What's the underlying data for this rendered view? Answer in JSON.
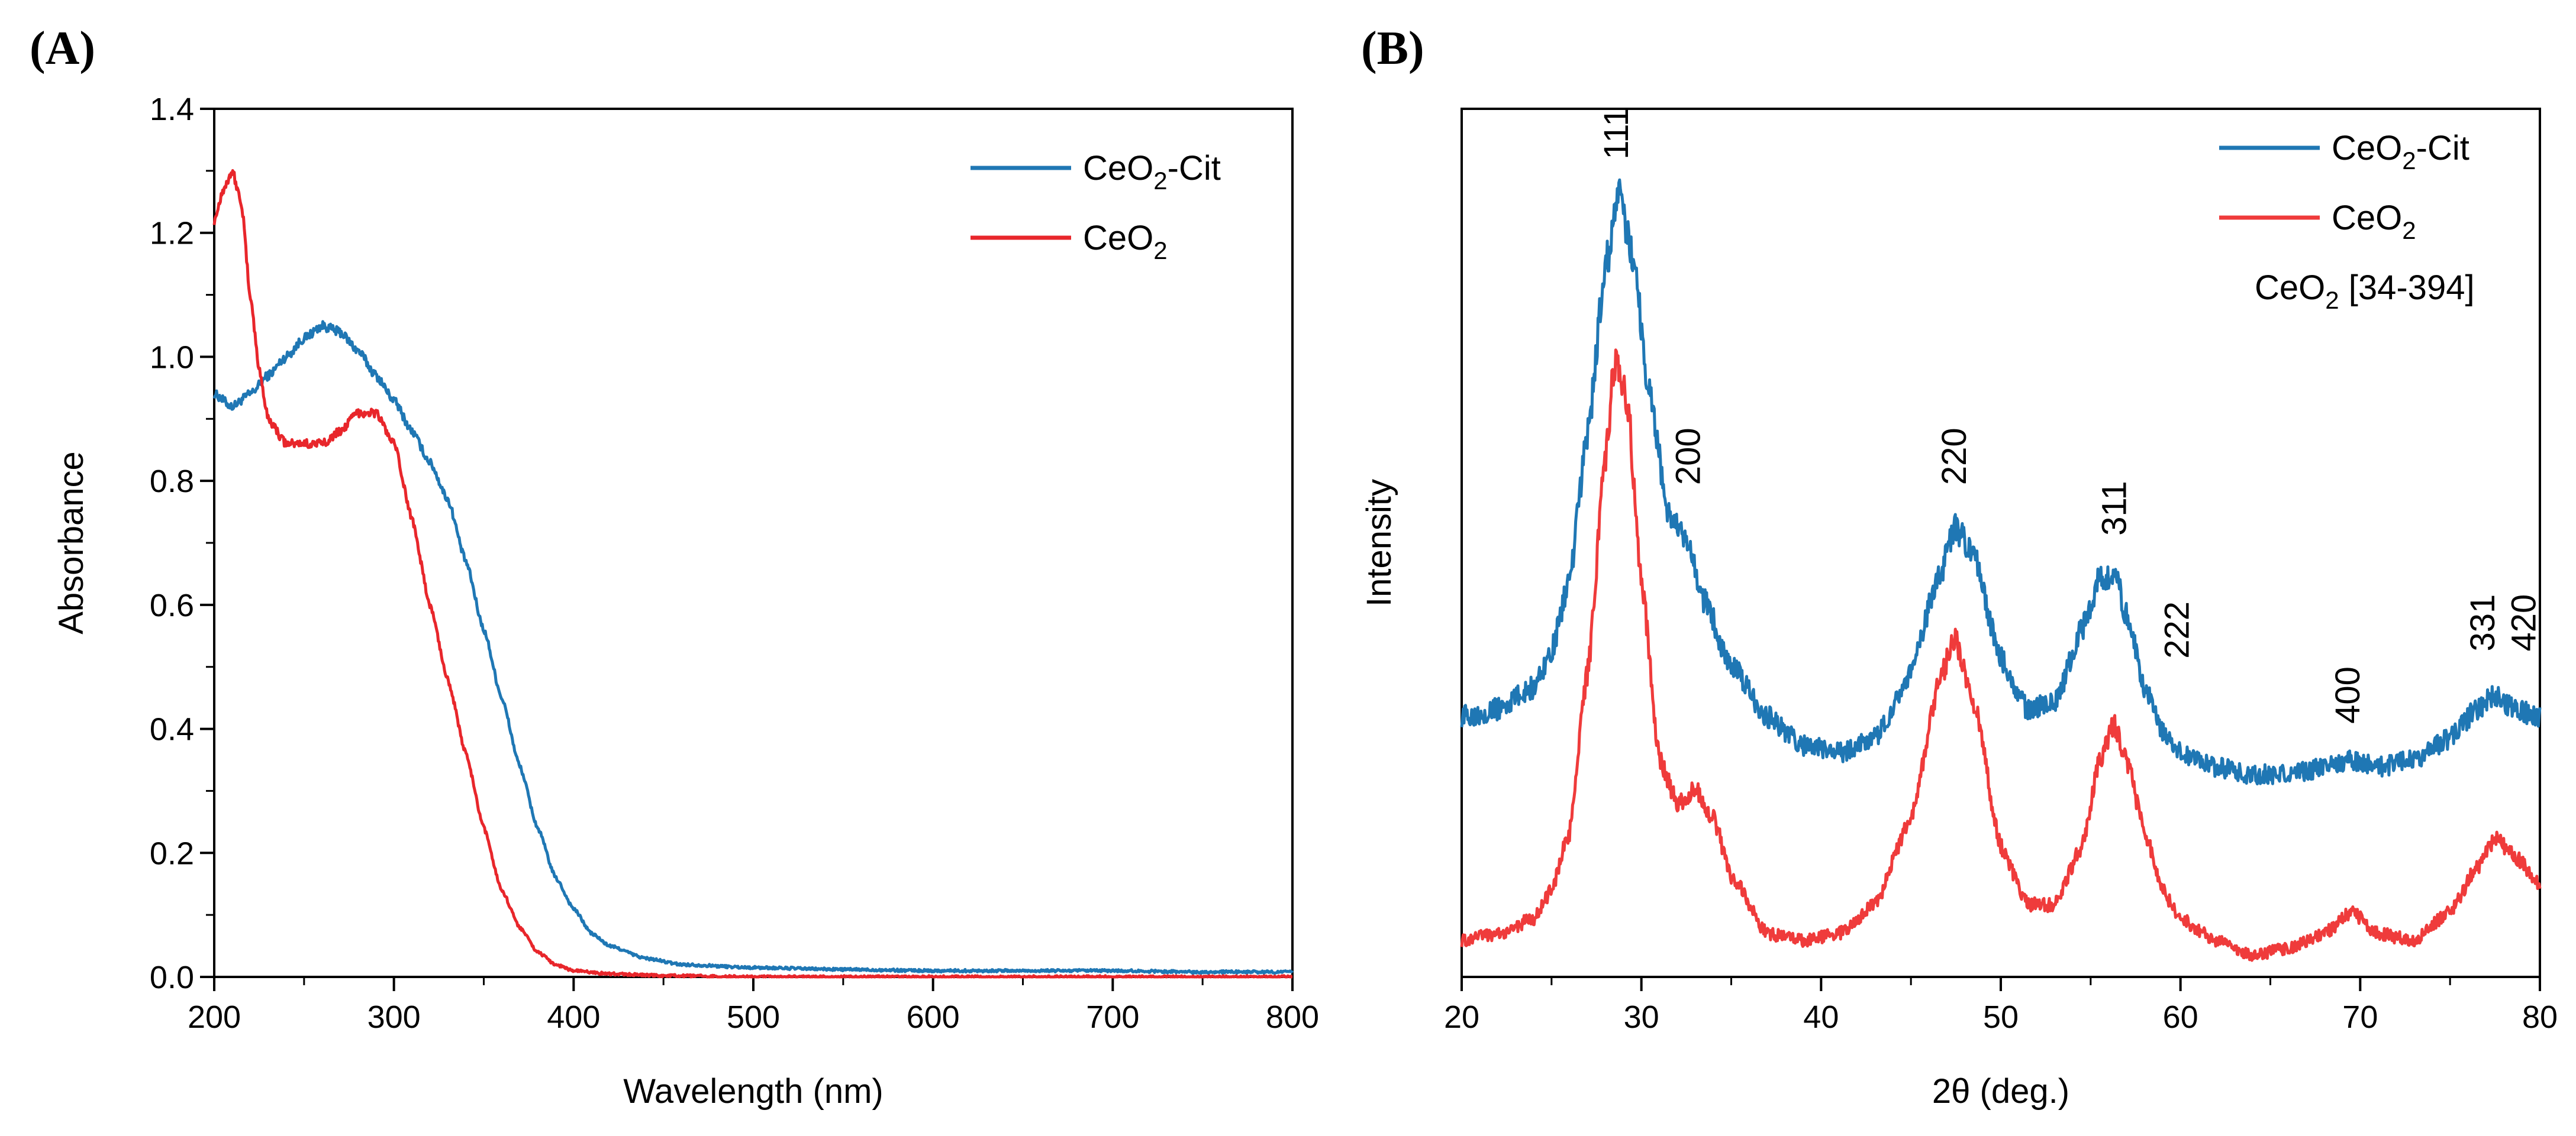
{
  "panels": {
    "a": {
      "label": "(A)"
    },
    "b": {
      "label": "(B)"
    }
  },
  "chart_data": [
    {
      "type": "line",
      "panel": "(A)",
      "title": "",
      "xlabel": "Wavelength (nm)",
      "ylabel": "Absorbance",
      "xlim": [
        200,
        800
      ],
      "ylim": [
        0,
        1.4
      ],
      "xticks": [
        "200",
        "300",
        "400",
        "500",
        "600",
        "700",
        "800"
      ],
      "yticks": [
        "0.0",
        "0.2",
        "0.4",
        "0.6",
        "0.8",
        "1.0",
        "1.2",
        "1.4"
      ],
      "legend_position": "top-right",
      "series": [
        {
          "name": "CeO2-Cit",
          "legend": {
            "base": "CeO",
            "sub": "2",
            "tail": "-Cit"
          },
          "color": "#1f77b4",
          "x": [
            200,
            210,
            220,
            230,
            240,
            250,
            260,
            270,
            280,
            290,
            300,
            310,
            320,
            330,
            340,
            350,
            360,
            370,
            380,
            390,
            400,
            410,
            420,
            440,
            460,
            500,
            550,
            600,
            650,
            700,
            750,
            800
          ],
          "y": [
            0.94,
            0.92,
            0.94,
            0.97,
            1.0,
            1.03,
            1.05,
            1.04,
            1.01,
            0.97,
            0.93,
            0.88,
            0.83,
            0.77,
            0.67,
            0.56,
            0.45,
            0.34,
            0.24,
            0.16,
            0.11,
            0.07,
            0.05,
            0.03,
            0.02,
            0.015,
            0.012,
            0.01,
            0.01,
            0.01,
            0.008,
            0.008
          ]
        },
        {
          "name": "CeO2",
          "legend": {
            "base": "CeO",
            "sub": "2",
            "tail": ""
          },
          "color": "#e8262b",
          "x": [
            200,
            205,
            210,
            215,
            220,
            225,
            230,
            240,
            250,
            260,
            270,
            280,
            290,
            300,
            310,
            320,
            330,
            340,
            350,
            360,
            370,
            380,
            390,
            400,
            420,
            450,
            500,
            600,
            700,
            800
          ],
          "y": [
            1.22,
            1.27,
            1.3,
            1.25,
            1.1,
            0.98,
            0.9,
            0.86,
            0.86,
            0.86,
            0.88,
            0.91,
            0.91,
            0.86,
            0.74,
            0.6,
            0.48,
            0.36,
            0.24,
            0.14,
            0.08,
            0.04,
            0.02,
            0.01,
            0.005,
            0.002,
            0.0,
            0.0,
            0.0,
            0.0
          ]
        }
      ]
    },
    {
      "type": "line",
      "panel": "(B)",
      "title": "",
      "xlabel": "2θ (deg.)",
      "ylabel": "Intensity",
      "xlim": [
        20,
        80
      ],
      "ylim": [
        0,
        1.2
      ],
      "xticks": [
        "20",
        "30",
        "40",
        "50",
        "60",
        "70",
        "80"
      ],
      "yticks": [],
      "legend_position": "top-right",
      "legend_extra": {
        "base": "CeO",
        "sub": "2",
        "tail": " [34-394]"
      },
      "series": [
        {
          "name": "CeO2-Cit",
          "legend": {
            "base": "CeO",
            "sub": "2",
            "tail": "-Cit"
          },
          "color": "#1f77b4",
          "x": [
            20,
            22,
            24,
            25,
            26,
            27,
            28,
            28.7,
            29.5,
            30.5,
            31.5,
            32.5,
            33.5,
            35,
            37,
            39,
            41,
            43,
            45,
            46.5,
            47.5,
            48.5,
            50,
            51.5,
            53,
            54.5,
            55.5,
            56.3,
            57,
            58,
            59,
            60,
            62,
            64,
            66,
            68,
            69.5,
            71,
            73,
            75,
            76.5,
            77.5,
            78.5,
            80
          ],
          "y": [
            0.36,
            0.37,
            0.4,
            0.45,
            0.55,
            0.75,
            0.98,
            1.08,
            1.0,
            0.8,
            0.64,
            0.6,
            0.52,
            0.43,
            0.36,
            0.32,
            0.31,
            0.33,
            0.42,
            0.55,
            0.62,
            0.58,
            0.44,
            0.37,
            0.38,
            0.48,
            0.55,
            0.56,
            0.5,
            0.4,
            0.34,
            0.31,
            0.29,
            0.28,
            0.28,
            0.29,
            0.3,
            0.29,
            0.3,
            0.33,
            0.37,
            0.39,
            0.37,
            0.36
          ]
        },
        {
          "name": "CeO2",
          "legend": {
            "base": "CeO",
            "sub": "2",
            "tail": ""
          },
          "color": "#ef3b3b",
          "x": [
            20,
            22,
            24,
            25,
            26,
            27,
            28,
            28.5,
            29.2,
            30,
            31,
            32,
            33,
            34,
            35,
            37,
            39,
            41,
            43,
            45,
            46.5,
            47.4,
            48.5,
            50,
            51.5,
            53,
            54.5,
            55.5,
            56.3,
            57,
            58,
            59,
            60,
            62,
            64,
            66,
            68,
            69.5,
            71,
            73,
            75,
            76.5,
            77.5,
            78.5,
            80
          ],
          "y": [
            0.05,
            0.06,
            0.08,
            0.12,
            0.2,
            0.42,
            0.72,
            0.85,
            0.8,
            0.55,
            0.3,
            0.24,
            0.26,
            0.22,
            0.14,
            0.06,
            0.05,
            0.06,
            0.1,
            0.22,
            0.4,
            0.47,
            0.38,
            0.18,
            0.1,
            0.1,
            0.18,
            0.3,
            0.35,
            0.3,
            0.2,
            0.12,
            0.08,
            0.05,
            0.03,
            0.04,
            0.06,
            0.09,
            0.06,
            0.05,
            0.09,
            0.15,
            0.19,
            0.17,
            0.13
          ]
        }
      ],
      "peak_labels": [
        {
          "text": "111",
          "x": 28.6,
          "y": 1.13
        },
        {
          "text": "200",
          "x": 32.6,
          "y": 0.68
        },
        {
          "text": "220",
          "x": 47.4,
          "y": 0.68
        },
        {
          "text": "311",
          "x": 56.3,
          "y": 0.61
        },
        {
          "text": "222",
          "x": 59.8,
          "y": 0.44
        },
        {
          "text": "400",
          "x": 69.3,
          "y": 0.35
        },
        {
          "text": "331",
          "x": 76.8,
          "y": 0.45
        },
        {
          "text": "420",
          "x": 79.1,
          "y": 0.45
        }
      ]
    }
  ]
}
